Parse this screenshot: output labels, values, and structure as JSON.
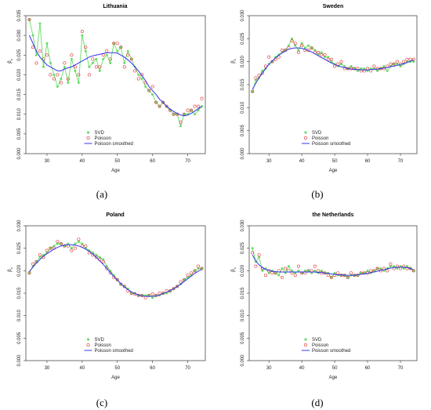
{
  "chart_data": [
    {
      "type": "scatter",
      "title": "Lithuania",
      "caption": "(a)",
      "xlabel": "Age",
      "ylabel": "β",
      "ylabel_sub": "x",
      "xlim": [
        24,
        75
      ],
      "ylim": [
        0,
        0.035
      ],
      "xticks": [
        30,
        40,
        50,
        60,
        70
      ],
      "yticks": [
        0.0,
        0.005,
        0.01,
        0.015,
        0.02,
        0.025,
        0.03,
        0.035
      ],
      "ytick_labels": [
        "0.000",
        "0.005",
        "0.010",
        "0.015",
        "0.020",
        "0.025",
        "0.030",
        "0.035"
      ],
      "legend": [
        "SVD",
        "Poisson",
        "Poisson smoothed"
      ],
      "legend_position": "bottom-center",
      "x": [
        25,
        26,
        27,
        28,
        29,
        30,
        31,
        32,
        33,
        34,
        35,
        36,
        37,
        38,
        39,
        40,
        41,
        42,
        43,
        44,
        45,
        46,
        47,
        48,
        49,
        50,
        51,
        52,
        53,
        54,
        55,
        56,
        57,
        58,
        59,
        60,
        61,
        62,
        63,
        64,
        65,
        66,
        67,
        68,
        69,
        70,
        71,
        72,
        73,
        74
      ],
      "series": [
        {
          "name": "SVD",
          "marker": "circle",
          "color": "#66dd66",
          "values": [
            0.034,
            0.03,
            0.025,
            0.033,
            0.022,
            0.028,
            0.023,
            0.02,
            0.017,
            0.019,
            0.022,
            0.018,
            0.024,
            0.021,
            0.018,
            0.03,
            0.026,
            0.022,
            0.023,
            0.024,
            0.021,
            0.024,
            0.025,
            0.023,
            0.028,
            0.026,
            0.027,
            0.023,
            0.026,
            0.024,
            0.022,
            0.02,
            0.019,
            0.017,
            0.016,
            0.015,
            0.013,
            0.012,
            0.013,
            0.012,
            0.011,
            0.01,
            0.01,
            0.007,
            0.01,
            0.01,
            0.011,
            0.01,
            0.011,
            0.012
          ]
        },
        {
          "name": "Poisson",
          "marker": "circle-open",
          "color": "#dd3333",
          "values": [
            0.034,
            0.027,
            0.023,
            0.026,
            0.024,
            0.025,
            0.02,
            0.019,
            0.02,
            0.018,
            0.023,
            0.019,
            0.025,
            0.022,
            0.02,
            0.031,
            0.027,
            0.02,
            0.024,
            0.022,
            0.022,
            0.025,
            0.026,
            0.024,
            0.028,
            0.028,
            0.027,
            0.022,
            0.025,
            0.024,
            0.021,
            0.019,
            0.02,
            0.018,
            0.016,
            0.017,
            0.013,
            0.012,
            0.013,
            0.012,
            0.011,
            0.01,
            0.01,
            0.008,
            0.01,
            0.011,
            0.011,
            0.012,
            0.012,
            0.014
          ]
        },
        {
          "name": "Poisson smoothed",
          "marker": "line",
          "color": "#3333ee",
          "values": [
            0.03,
            0.028,
            0.026,
            0.0245,
            0.0235,
            0.0225,
            0.022,
            0.0215,
            0.021,
            0.021,
            0.0215,
            0.0218,
            0.022,
            0.0225,
            0.023,
            0.0235,
            0.024,
            0.0245,
            0.0248,
            0.025,
            0.0252,
            0.0254,
            0.0256,
            0.0256,
            0.0256,
            0.0255,
            0.025,
            0.0245,
            0.0238,
            0.023,
            0.022,
            0.021,
            0.0198,
            0.0185,
            0.017,
            0.016,
            0.015,
            0.0138,
            0.013,
            0.012,
            0.0113,
            0.0107,
            0.0102,
            0.0098,
            0.0096,
            0.0098,
            0.0102,
            0.0108,
            0.0114,
            0.012
          ]
        }
      ]
    },
    {
      "type": "scatter",
      "title": "Sweden",
      "caption": "(b)",
      "xlabel": "Age",
      "ylabel": "β",
      "ylabel_sub": "x",
      "xlim": [
        24,
        75
      ],
      "ylim": [
        0,
        0.03
      ],
      "xticks": [
        30,
        40,
        50,
        60,
        70
      ],
      "yticks": [
        0.0,
        0.005,
        0.01,
        0.015,
        0.02,
        0.025,
        0.03
      ],
      "ytick_labels": [
        "0.000",
        "0.005",
        "0.010",
        "0.015",
        "0.020",
        "0.025",
        "0.030"
      ],
      "legend": [
        "SVD",
        "Poisson",
        "Poisson smoothed"
      ],
      "legend_position": "bottom-center",
      "x": [
        25,
        26,
        27,
        28,
        29,
        30,
        31,
        32,
        33,
        34,
        35,
        36,
        37,
        38,
        39,
        40,
        41,
        42,
        43,
        44,
        45,
        46,
        47,
        48,
        49,
        50,
        51,
        52,
        53,
        54,
        55,
        56,
        57,
        58,
        59,
        60,
        61,
        62,
        63,
        64,
        65,
        66,
        67,
        68,
        69,
        70,
        71,
        72,
        73,
        74
      ],
      "series": [
        {
          "name": "SVD",
          "marker": "circle",
          "color": "#66dd66",
          "values": [
            0.0135,
            0.016,
            0.0165,
            0.018,
            0.0185,
            0.0195,
            0.02,
            0.021,
            0.0215,
            0.022,
            0.0225,
            0.0235,
            0.025,
            0.0235,
            0.0225,
            0.024,
            0.023,
            0.0235,
            0.023,
            0.0225,
            0.0215,
            0.022,
            0.021,
            0.021,
            0.02,
            0.0195,
            0.019,
            0.0195,
            0.019,
            0.0185,
            0.019,
            0.0185,
            0.018,
            0.0185,
            0.0185,
            0.018,
            0.0185,
            0.0185,
            0.018,
            0.0185,
            0.019,
            0.018,
            0.019,
            0.0195,
            0.0195,
            0.019,
            0.0195,
            0.02,
            0.02,
            0.02
          ]
        },
        {
          "name": "Poisson",
          "marker": "circle-open",
          "color": "#dd3333",
          "values": [
            0.0135,
            0.0165,
            0.017,
            0.0175,
            0.019,
            0.021,
            0.02,
            0.0205,
            0.021,
            0.0225,
            0.0225,
            0.023,
            0.0245,
            0.024,
            0.022,
            0.0235,
            0.0225,
            0.0225,
            0.023,
            0.022,
            0.022,
            0.0215,
            0.0215,
            0.0205,
            0.0205,
            0.019,
            0.0195,
            0.02,
            0.0185,
            0.0185,
            0.0185,
            0.0185,
            0.0185,
            0.018,
            0.018,
            0.0185,
            0.018,
            0.019,
            0.0185,
            0.0185,
            0.0185,
            0.019,
            0.0195,
            0.0195,
            0.02,
            0.0195,
            0.02,
            0.0205,
            0.0205,
            0.0205
          ]
        },
        {
          "name": "Poisson smoothed",
          "marker": "line",
          "color": "#3333ee",
          "values": [
            0.014,
            0.0153,
            0.0165,
            0.0175,
            0.0185,
            0.0194,
            0.0201,
            0.0208,
            0.0214,
            0.0219,
            0.0223,
            0.0227,
            0.0229,
            0.023,
            0.023,
            0.0229,
            0.0227,
            0.0224,
            0.0221,
            0.0217,
            0.0213,
            0.0209,
            0.0205,
            0.0201,
            0.0197,
            0.0194,
            0.0191,
            0.0189,
            0.0187,
            0.0185,
            0.0184,
            0.0183,
            0.0183,
            0.0182,
            0.0182,
            0.0182,
            0.0183,
            0.0183,
            0.0184,
            0.0185,
            0.0186,
            0.0187,
            0.0189,
            0.019,
            0.0192,
            0.0194,
            0.0196,
            0.0198,
            0.0201,
            0.0204
          ]
        }
      ]
    },
    {
      "type": "scatter",
      "title": "Poland",
      "caption": "(c)",
      "xlabel": "Age",
      "ylabel": "β",
      "ylabel_sub": "x",
      "xlim": [
        24,
        75
      ],
      "ylim": [
        0,
        0.03
      ],
      "xticks": [
        30,
        40,
        50,
        60,
        70
      ],
      "yticks": [
        0.0,
        0.005,
        0.01,
        0.015,
        0.02,
        0.025,
        0.03
      ],
      "ytick_labels": [
        "0.000",
        "0.005",
        "0.010",
        "0.015",
        "0.020",
        "0.025",
        "0.030"
      ],
      "legend": [
        "SVD",
        "Poisson",
        "Poisson smoothed"
      ],
      "legend_position": "bottom-center",
      "x": [
        25,
        26,
        27,
        28,
        29,
        30,
        31,
        32,
        33,
        34,
        35,
        36,
        37,
        38,
        39,
        40,
        41,
        42,
        43,
        44,
        45,
        46,
        47,
        48,
        49,
        50,
        51,
        52,
        53,
        54,
        55,
        56,
        57,
        58,
        59,
        60,
        61,
        62,
        63,
        64,
        65,
        66,
        67,
        68,
        69,
        70,
        71,
        72,
        73,
        74
      ],
      "series": [
        {
          "name": "SVD",
          "marker": "circle",
          "color": "#66dd66",
          "values": [
            0.0195,
            0.021,
            0.022,
            0.023,
            0.0235,
            0.024,
            0.025,
            0.0255,
            0.026,
            0.026,
            0.0255,
            0.026,
            0.025,
            0.026,
            0.0265,
            0.026,
            0.025,
            0.0245,
            0.024,
            0.0235,
            0.023,
            0.0225,
            0.021,
            0.02,
            0.019,
            0.018,
            0.017,
            0.0165,
            0.016,
            0.015,
            0.015,
            0.0145,
            0.0145,
            0.0145,
            0.0145,
            0.014,
            0.0145,
            0.0145,
            0.015,
            0.015,
            0.0155,
            0.016,
            0.0165,
            0.017,
            0.018,
            0.0185,
            0.019,
            0.02,
            0.0205,
            0.0205
          ]
        },
        {
          "name": "Poisson",
          "marker": "circle-open",
          "color": "#dd3333",
          "values": [
            0.0195,
            0.0215,
            0.022,
            0.0235,
            0.023,
            0.0245,
            0.025,
            0.025,
            0.0265,
            0.026,
            0.0255,
            0.0255,
            0.0245,
            0.025,
            0.027,
            0.0255,
            0.0255,
            0.024,
            0.0235,
            0.023,
            0.0225,
            0.022,
            0.0205,
            0.0195,
            0.0185,
            0.018,
            0.017,
            0.0165,
            0.0155,
            0.015,
            0.0148,
            0.0145,
            0.0145,
            0.014,
            0.0145,
            0.0148,
            0.0145,
            0.015,
            0.015,
            0.0155,
            0.0155,
            0.016,
            0.0165,
            0.0175,
            0.018,
            0.019,
            0.0195,
            0.02,
            0.021,
            0.0205
          ]
        },
        {
          "name": "Poisson smoothed",
          "marker": "line",
          "color": "#3333ee",
          "values": [
            0.0198,
            0.0208,
            0.0217,
            0.0225,
            0.0232,
            0.0238,
            0.0243,
            0.0248,
            0.0252,
            0.0255,
            0.0257,
            0.0258,
            0.0258,
            0.0257,
            0.0255,
            0.0252,
            0.0248,
            0.0243,
            0.0237,
            0.023,
            0.0222,
            0.0214,
            0.0205,
            0.0196,
            0.0187,
            0.0179,
            0.0171,
            0.0164,
            0.0158,
            0.0153,
            0.0149,
            0.0146,
            0.0144,
            0.0143,
            0.0143,
            0.0143,
            0.0144,
            0.0146,
            0.0149,
            0.0152,
            0.0156,
            0.016,
            0.0165,
            0.017,
            0.0176,
            0.0182,
            0.0188,
            0.0194,
            0.0199,
            0.0203
          ]
        }
      ]
    },
    {
      "type": "scatter",
      "title": "the Netherlands",
      "caption": "(d)",
      "xlabel": "Age",
      "ylabel": "β",
      "ylabel_sub": "x",
      "xlim": [
        24,
        75
      ],
      "ylim": [
        0,
        0.03
      ],
      "xticks": [
        30,
        40,
        50,
        60,
        70
      ],
      "yticks": [
        0.0,
        0.005,
        0.01,
        0.015,
        0.02,
        0.025,
        0.03
      ],
      "ytick_labels": [
        "0.000",
        "0.005",
        "0.010",
        "0.015",
        "0.020",
        "0.025",
        "0.030"
      ],
      "legend": [
        "SVD",
        "Poisson",
        "Poisson smoothed"
      ],
      "legend_position": "bottom-center",
      "x": [
        25,
        26,
        27,
        28,
        29,
        30,
        31,
        32,
        33,
        34,
        35,
        36,
        37,
        38,
        39,
        40,
        41,
        42,
        43,
        44,
        45,
        46,
        47,
        48,
        49,
        50,
        51,
        52,
        53,
        54,
        55,
        56,
        57,
        58,
        59,
        60,
        61,
        62,
        63,
        64,
        65,
        66,
        67,
        68,
        69,
        70,
        71,
        72,
        73,
        74
      ],
      "series": [
        {
          "name": "SVD",
          "marker": "circle",
          "color": "#66dd66",
          "values": [
            0.025,
            0.022,
            0.023,
            0.02,
            0.0205,
            0.0195,
            0.02,
            0.0195,
            0.019,
            0.0205,
            0.0195,
            0.021,
            0.02,
            0.0195,
            0.02,
            0.0195,
            0.02,
            0.02,
            0.0195,
            0.02,
            0.0195,
            0.02,
            0.0195,
            0.0195,
            0.0185,
            0.0195,
            0.019,
            0.019,
            0.019,
            0.0185,
            0.019,
            0.019,
            0.019,
            0.0195,
            0.0195,
            0.02,
            0.0195,
            0.02,
            0.0205,
            0.0205,
            0.02,
            0.0205,
            0.021,
            0.021,
            0.0205,
            0.021,
            0.0205,
            0.021,
            0.0205,
            0.02
          ]
        },
        {
          "name": "Poisson",
          "marker": "circle-open",
          "color": "#dd3333",
          "values": [
            0.024,
            0.021,
            0.0235,
            0.0205,
            0.019,
            0.02,
            0.0195,
            0.0195,
            0.02,
            0.0185,
            0.0205,
            0.02,
            0.0195,
            0.019,
            0.021,
            0.0195,
            0.0195,
            0.02,
            0.02,
            0.021,
            0.02,
            0.0195,
            0.0195,
            0.019,
            0.0185,
            0.019,
            0.0195,
            0.019,
            0.019,
            0.0185,
            0.0195,
            0.019,
            0.019,
            0.0195,
            0.0195,
            0.0195,
            0.02,
            0.02,
            0.0205,
            0.02,
            0.0205,
            0.02,
            0.0215,
            0.0205,
            0.021,
            0.0205,
            0.021,
            0.0205,
            0.0205,
            0.02
          ]
        },
        {
          "name": "Poisson smoothed",
          "marker": "line",
          "color": "#3333ee",
          "values": [
            0.0235,
            0.0222,
            0.0213,
            0.0207,
            0.0203,
            0.0201,
            0.0199,
            0.0198,
            0.0197,
            0.0197,
            0.0197,
            0.0197,
            0.0197,
            0.0197,
            0.0197,
            0.0197,
            0.0197,
            0.0197,
            0.0197,
            0.0197,
            0.0196,
            0.0196,
            0.0195,
            0.0194,
            0.0193,
            0.0192,
            0.0191,
            0.0191,
            0.019,
            0.019,
            0.019,
            0.019,
            0.0191,
            0.0192,
            0.0193,
            0.0194,
            0.0196,
            0.0197,
            0.0199,
            0.0201,
            0.0202,
            0.0204,
            0.0206,
            0.0207,
            0.0208,
            0.0208,
            0.0208,
            0.0207,
            0.0205,
            0.0202
          ]
        }
      ]
    }
  ]
}
